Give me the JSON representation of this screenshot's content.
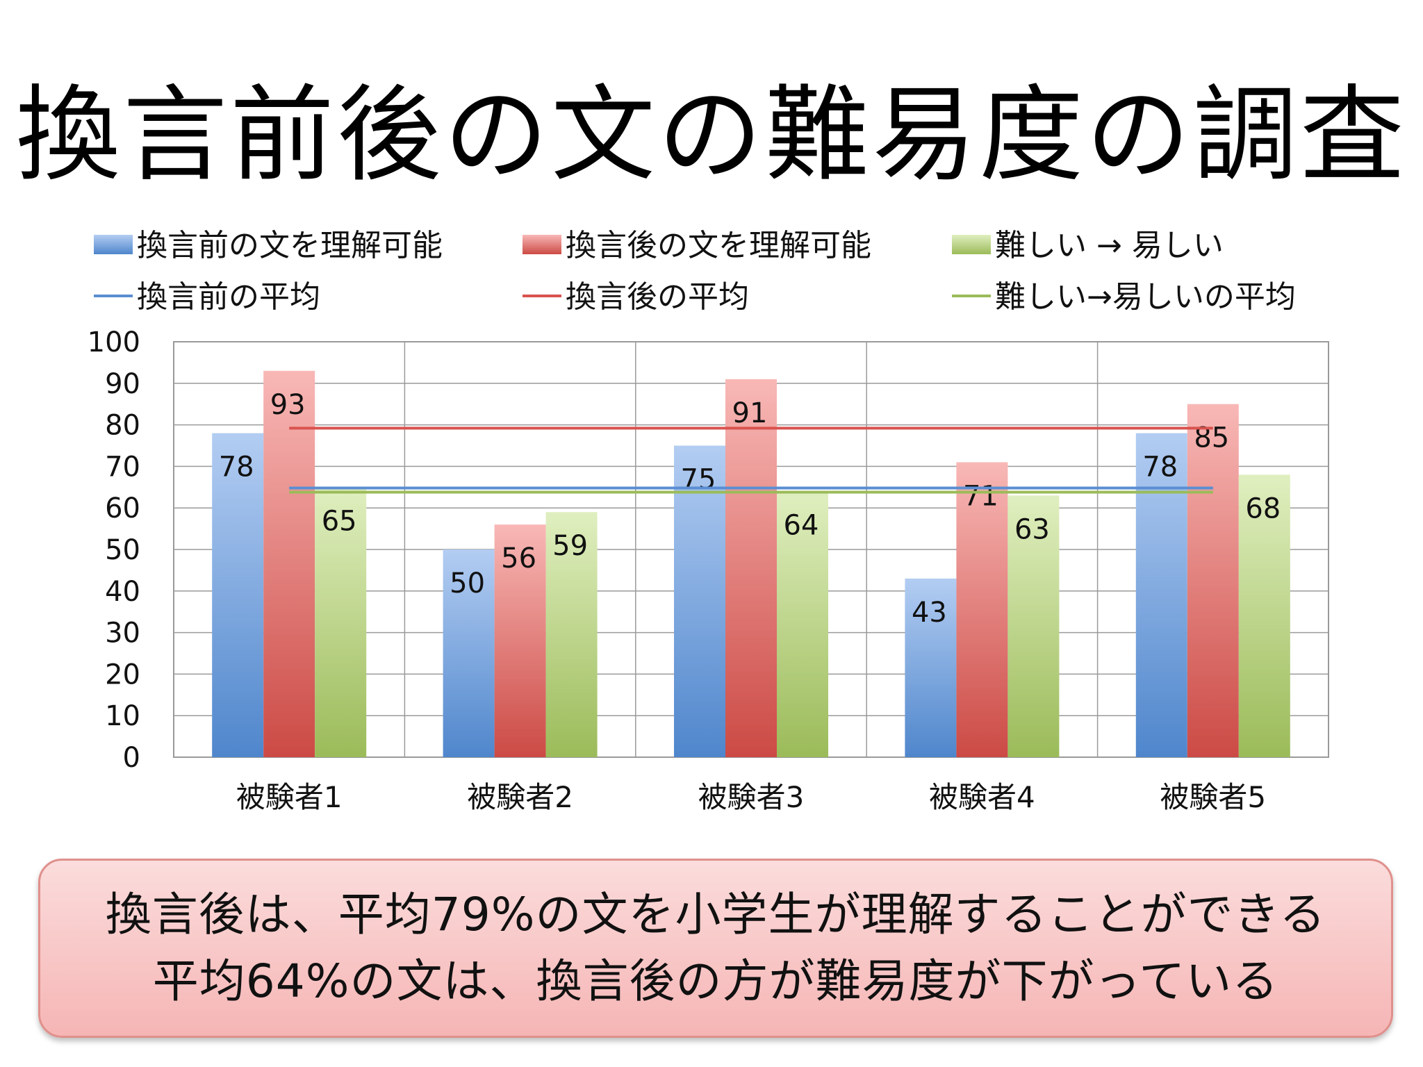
{
  "title": "換言前後の文の難易度の調査",
  "colors": {
    "before": "#5b8ed1",
    "after": "#d9534f",
    "easier": "#9bbb59"
  },
  "chart_data": {
    "type": "bar",
    "categories": [
      "被験者1",
      "被験者2",
      "被験者3",
      "被験者4",
      "被験者5"
    ],
    "series": [
      {
        "name": "換言前の文を理解可能",
        "values": [
          78,
          50,
          75,
          43,
          78
        ]
      },
      {
        "name": "換言後の文を理解可能",
        "values": [
          93,
          56,
          91,
          71,
          85
        ]
      },
      {
        "name": "難しい → 易しい",
        "values": [
          65,
          59,
          64,
          63,
          68
        ]
      }
    ],
    "averages": [
      {
        "name": "換言前の平均",
        "value": 64.8
      },
      {
        "name": "換言後の平均",
        "value": 79.2
      },
      {
        "name": "難しい→易しいの平均",
        "value": 63.8
      }
    ],
    "ylim": [
      0,
      100
    ],
    "yticks": [
      "0",
      "10",
      "20",
      "30",
      "40",
      "50",
      "60",
      "70",
      "80",
      "90",
      "100"
    ],
    "grid": true,
    "legend_position": "top"
  },
  "summary": {
    "line1": "換言後は、平均79%の文を小学生が理解することができる",
    "line2": "平均64%の文は、換言後の方が難易度が下がっている"
  }
}
